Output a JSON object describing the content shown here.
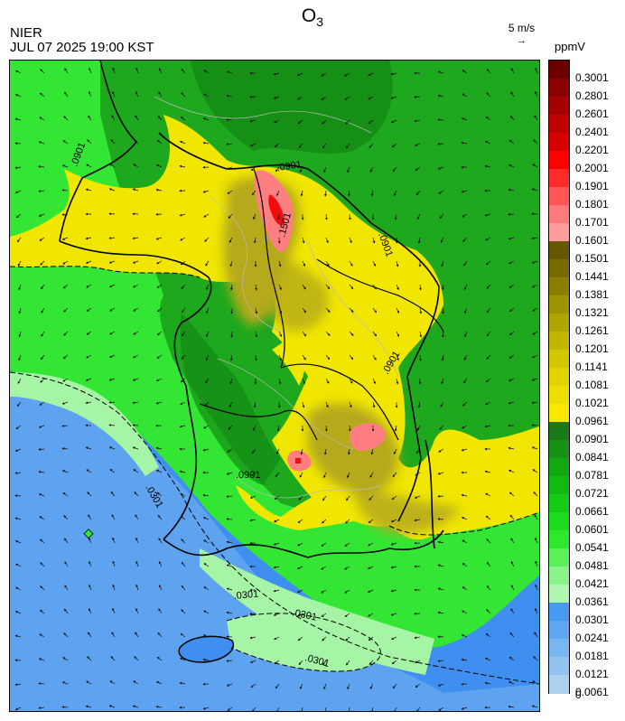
{
  "header": {
    "title_main": "O",
    "title_sub": "3",
    "agency": "NIER",
    "datetime": "JUL 07 2025 19:00 KST",
    "wind_reference": "5 m/s",
    "unit": "ppmV"
  },
  "map": {
    "contour_labels": [
      ".0901",
      ".0901",
      ".0901",
      ".0901",
      ".0901",
      ".1501",
      ".0301",
      ".0301",
      ".0301",
      ".0301"
    ],
    "colors": {
      "sea_blue": "#3f8ff0",
      "light_blue": "#7ab7f0",
      "pale_green": "#a6f5a6",
      "bright_green": "#33e633",
      "mid_green": "#1fb81f",
      "dark_green": "#148a14",
      "yellow": "#f0e600",
      "olive": "#b5a91c",
      "pink": "#ff7f80",
      "red": "#f20d0d"
    }
  },
  "colorbar": {
    "labels": [
      "0.3001",
      "0.2801",
      "0.2601",
      "0.2401",
      "0.2201",
      "0.2001",
      "0.1901",
      "0.1801",
      "0.1701",
      "0.1601",
      "0.1501",
      "0.1441",
      "0.1381",
      "0.1321",
      "0.1261",
      "0.1201",
      "0.1141",
      "0.1081",
      "0.1021",
      "0.0961",
      "0.0901",
      "0.0841",
      "0.0781",
      "0.0721",
      "0.0661",
      "0.0601",
      "0.0541",
      "0.0481",
      "0.0421",
      "0.0361",
      "0.0301",
      "0.0241",
      "0.0181",
      "0.0121",
      "0.0061",
      "0"
    ],
    "colors": [
      "#6b0000",
      "#8b0000",
      "#a50000",
      "#bf0000",
      "#d70000",
      "#ff0000",
      "#ff2a2a",
      "#ff5555",
      "#ff7a7a",
      "#ff9c9c",
      "#655800",
      "#786b00",
      "#8b7f00",
      "#9e9300",
      "#b0a400",
      "#c2b600",
      "#d4c600",
      "#e2d300",
      "#eedf00",
      "#f8e800",
      "#1a7a1a",
      "#169316",
      "#12a812",
      "#12bb12",
      "#17cc17",
      "#1ddc1d",
      "#2ee82e",
      "#5af05a",
      "#8af38a",
      "#b0f5b0",
      "#4599ef",
      "#5fa8ef",
      "#79b6ef",
      "#93c4ef",
      "#acd2ef"
    ]
  }
}
